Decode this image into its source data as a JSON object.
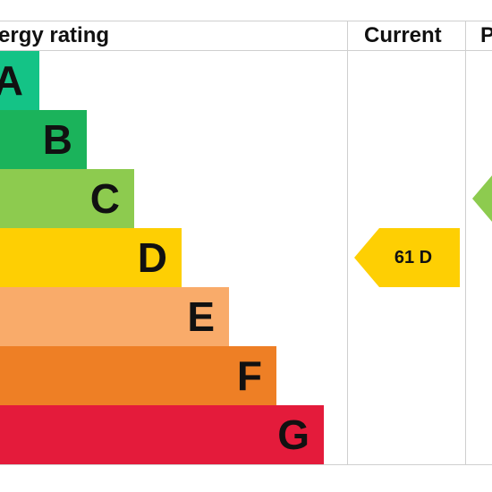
{
  "header": {
    "rating_label": "ergy rating",
    "current_label": "Current",
    "potential_label": "P"
  },
  "chart_data": {
    "type": "bar",
    "categories": [
      "A",
      "B",
      "C",
      "D",
      "E",
      "F",
      "G"
    ],
    "band_colors": [
      "#14c386",
      "#1bb35b",
      "#8dcb4f",
      "#fecf03",
      "#f9ab6a",
      "#ee7f25",
      "#e41b3b"
    ],
    "current": {
      "value": 61,
      "band": "D",
      "text": "61  D",
      "color": "#fecf03"
    },
    "potential": {
      "band": "C",
      "color": "#8dcb4f"
    }
  }
}
